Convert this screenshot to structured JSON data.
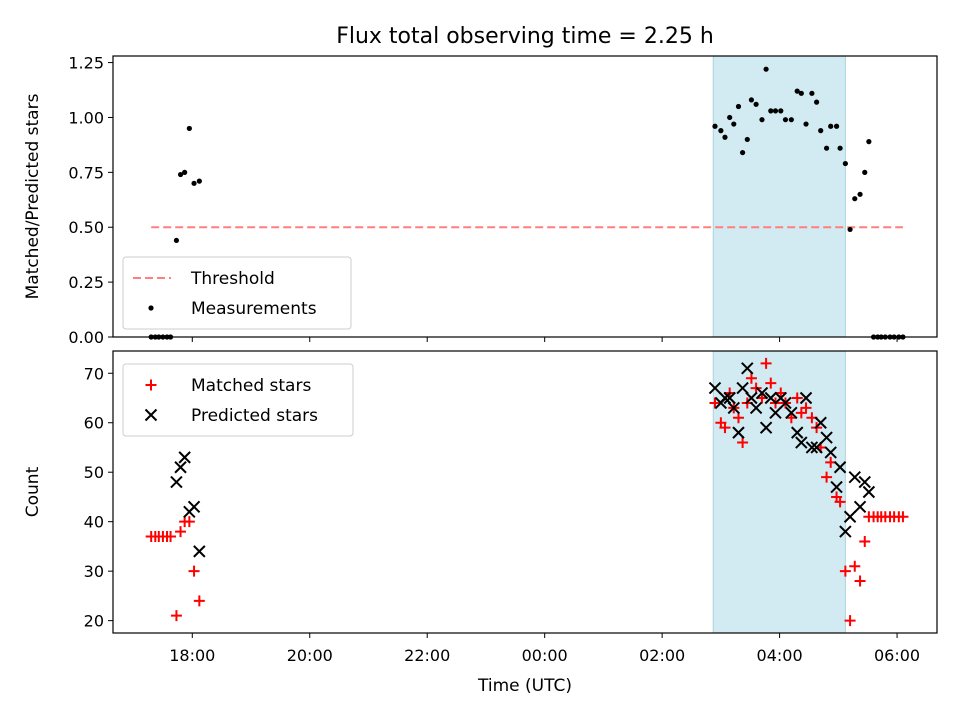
{
  "chart_data": {
    "title": "Flux total observing time = 2.25 h",
    "xlabel": "Time (UTC)",
    "x_ticks": [
      "18:00",
      "20:00",
      "22:00",
      "00:00",
      "02:00",
      "04:00",
      "06:00"
    ],
    "x_tick_hours": [
      18,
      20,
      22,
      24,
      26,
      28,
      30
    ],
    "xlim_hours": [
      16.65,
      30.68
    ],
    "observing_window_hours": [
      26.87,
      29.12
    ],
    "window_color": "#add8e6",
    "panels": [
      {
        "type": "scatter",
        "ylabel": "Matched/Predicted stars",
        "ylim": [
          0,
          1.28
        ],
        "y_ticks": [
          0.0,
          0.25,
          0.5,
          0.75,
          1.0,
          1.25
        ],
        "y_tick_labels": [
          "0.00",
          "0.25",
          "0.50",
          "0.75",
          "1.00",
          "1.25"
        ],
        "legend_position": "lower-left",
        "threshold": {
          "name": "Threshold",
          "value": 0.5,
          "x_range": [
            17.3,
            30.1
          ],
          "color": "#ff7f7f"
        },
        "series": [
          {
            "name": "Measurements",
            "color": "#000000",
            "marker": "dot",
            "points": [
              [
                17.3,
                0
              ],
              [
                17.37,
                0
              ],
              [
                17.43,
                0
              ],
              [
                17.5,
                0
              ],
              [
                17.57,
                0
              ],
              [
                17.63,
                0
              ],
              [
                17.73,
                0.44
              ],
              [
                17.8,
                0.74
              ],
              [
                17.87,
                0.75
              ],
              [
                17.95,
                0.95
              ],
              [
                18.03,
                0.7
              ],
              [
                18.12,
                0.71
              ],
              [
                26.9,
                0.96
              ],
              [
                27.0,
                0.94
              ],
              [
                27.07,
                0.91
              ],
              [
                27.15,
                1.0
              ],
              [
                27.22,
                0.97
              ],
              [
                27.3,
                1.05
              ],
              [
                27.37,
                0.84
              ],
              [
                27.45,
                0.9
              ],
              [
                27.52,
                1.08
              ],
              [
                27.6,
                1.06
              ],
              [
                27.7,
                0.99
              ],
              [
                27.77,
                1.22
              ],
              [
                27.85,
                1.03
              ],
              [
                27.93,
                1.03
              ],
              [
                28.02,
                1.03
              ],
              [
                28.1,
                0.99
              ],
              [
                28.2,
                0.99
              ],
              [
                28.3,
                1.12
              ],
              [
                28.37,
                1.11
              ],
              [
                28.45,
                0.97
              ],
              [
                28.55,
                1.11
              ],
              [
                28.63,
                1.07
              ],
              [
                28.7,
                0.94
              ],
              [
                28.8,
                0.86
              ],
              [
                28.87,
                0.96
              ],
              [
                28.97,
                0.96
              ],
              [
                29.03,
                0.86
              ],
              [
                29.12,
                0.79
              ],
              [
                29.2,
                0.49
              ],
              [
                29.28,
                0.63
              ],
              [
                29.37,
                0.65
              ],
              [
                29.45,
                0.75
              ],
              [
                29.52,
                0.89
              ],
              [
                29.6,
                0
              ],
              [
                29.67,
                0
              ],
              [
                29.73,
                0
              ],
              [
                29.8,
                0
              ],
              [
                29.88,
                0
              ],
              [
                29.95,
                0
              ],
              [
                30.03,
                0
              ],
              [
                30.1,
                0
              ]
            ]
          }
        ]
      },
      {
        "type": "scatter",
        "ylabel": "Count",
        "ylim": [
          17.5,
          74.5
        ],
        "y_ticks": [
          20,
          30,
          40,
          50,
          60,
          70
        ],
        "y_tick_labels": [
          "20",
          "30",
          "40",
          "50",
          "60",
          "70"
        ],
        "legend_position": "upper-left",
        "series": [
          {
            "name": "Matched stars",
            "color": "#ff0000",
            "marker": "plus",
            "points": [
              [
                17.3,
                37
              ],
              [
                17.37,
                37
              ],
              [
                17.43,
                37
              ],
              [
                17.5,
                37
              ],
              [
                17.57,
                37
              ],
              [
                17.63,
                37
              ],
              [
                17.73,
                21
              ],
              [
                17.8,
                38
              ],
              [
                17.87,
                40
              ],
              [
                17.95,
                40
              ],
              [
                18.03,
                30
              ],
              [
                18.12,
                24
              ],
              [
                26.9,
                64
              ],
              [
                27.0,
                60
              ],
              [
                27.07,
                59
              ],
              [
                27.15,
                66
              ],
              [
                27.22,
                63
              ],
              [
                27.3,
                61
              ],
              [
                27.37,
                56
              ],
              [
                27.45,
                64
              ],
              [
                27.52,
                69
              ],
              [
                27.6,
                67
              ],
              [
                27.7,
                65
              ],
              [
                27.77,
                72
              ],
              [
                27.85,
                68
              ],
              [
                27.93,
                64
              ],
              [
                28.02,
                66
              ],
              [
                28.1,
                64
              ],
              [
                28.2,
                61
              ],
              [
                28.3,
                65
              ],
              [
                28.37,
                62
              ],
              [
                28.45,
                63
              ],
              [
                28.55,
                61
              ],
              [
                28.63,
                59
              ],
              [
                28.7,
                55
              ],
              [
                28.8,
                49
              ],
              [
                28.87,
                52
              ],
              [
                28.97,
                45
              ],
              [
                29.03,
                44
              ],
              [
                29.12,
                30
              ],
              [
                29.2,
                20
              ],
              [
                29.28,
                31
              ],
              [
                29.37,
                28
              ],
              [
                29.45,
                36
              ],
              [
                29.52,
                41
              ],
              [
                29.6,
                41
              ],
              [
                29.67,
                41
              ],
              [
                29.73,
                41
              ],
              [
                29.8,
                41
              ],
              [
                29.88,
                41
              ],
              [
                29.95,
                41
              ],
              [
                30.03,
                41
              ],
              [
                30.1,
                41
              ]
            ]
          },
          {
            "name": "Predicted stars",
            "color": "#000000",
            "marker": "x",
            "points": [
              [
                17.73,
                48
              ],
              [
                17.8,
                51
              ],
              [
                17.87,
                53
              ],
              [
                17.95,
                42
              ],
              [
                18.03,
                43
              ],
              [
                18.12,
                34
              ],
              [
                26.9,
                67
              ],
              [
                27.0,
                64
              ],
              [
                27.07,
                65
              ],
              [
                27.15,
                65
              ],
              [
                27.22,
                63
              ],
              [
                27.3,
                58
              ],
              [
                27.37,
                67
              ],
              [
                27.45,
                71
              ],
              [
                27.52,
                65
              ],
              [
                27.6,
                63
              ],
              [
                27.7,
                66
              ],
              [
                27.77,
                59
              ],
              [
                27.85,
                65
              ],
              [
                27.93,
                62
              ],
              [
                28.02,
                65
              ],
              [
                28.1,
                64
              ],
              [
                28.2,
                62
              ],
              [
                28.3,
                58
              ],
              [
                28.37,
                56
              ],
              [
                28.45,
                65
              ],
              [
                28.55,
                55
              ],
              [
                28.63,
                55
              ],
              [
                28.7,
                60
              ],
              [
                28.8,
                57
              ],
              [
                28.87,
                54
              ],
              [
                28.97,
                47
              ],
              [
                29.03,
                51
              ],
              [
                29.12,
                38
              ],
              [
                29.2,
                41
              ],
              [
                29.28,
                49
              ],
              [
                29.37,
                43
              ],
              [
                29.45,
                48
              ],
              [
                29.52,
                46
              ]
            ]
          }
        ]
      }
    ]
  }
}
